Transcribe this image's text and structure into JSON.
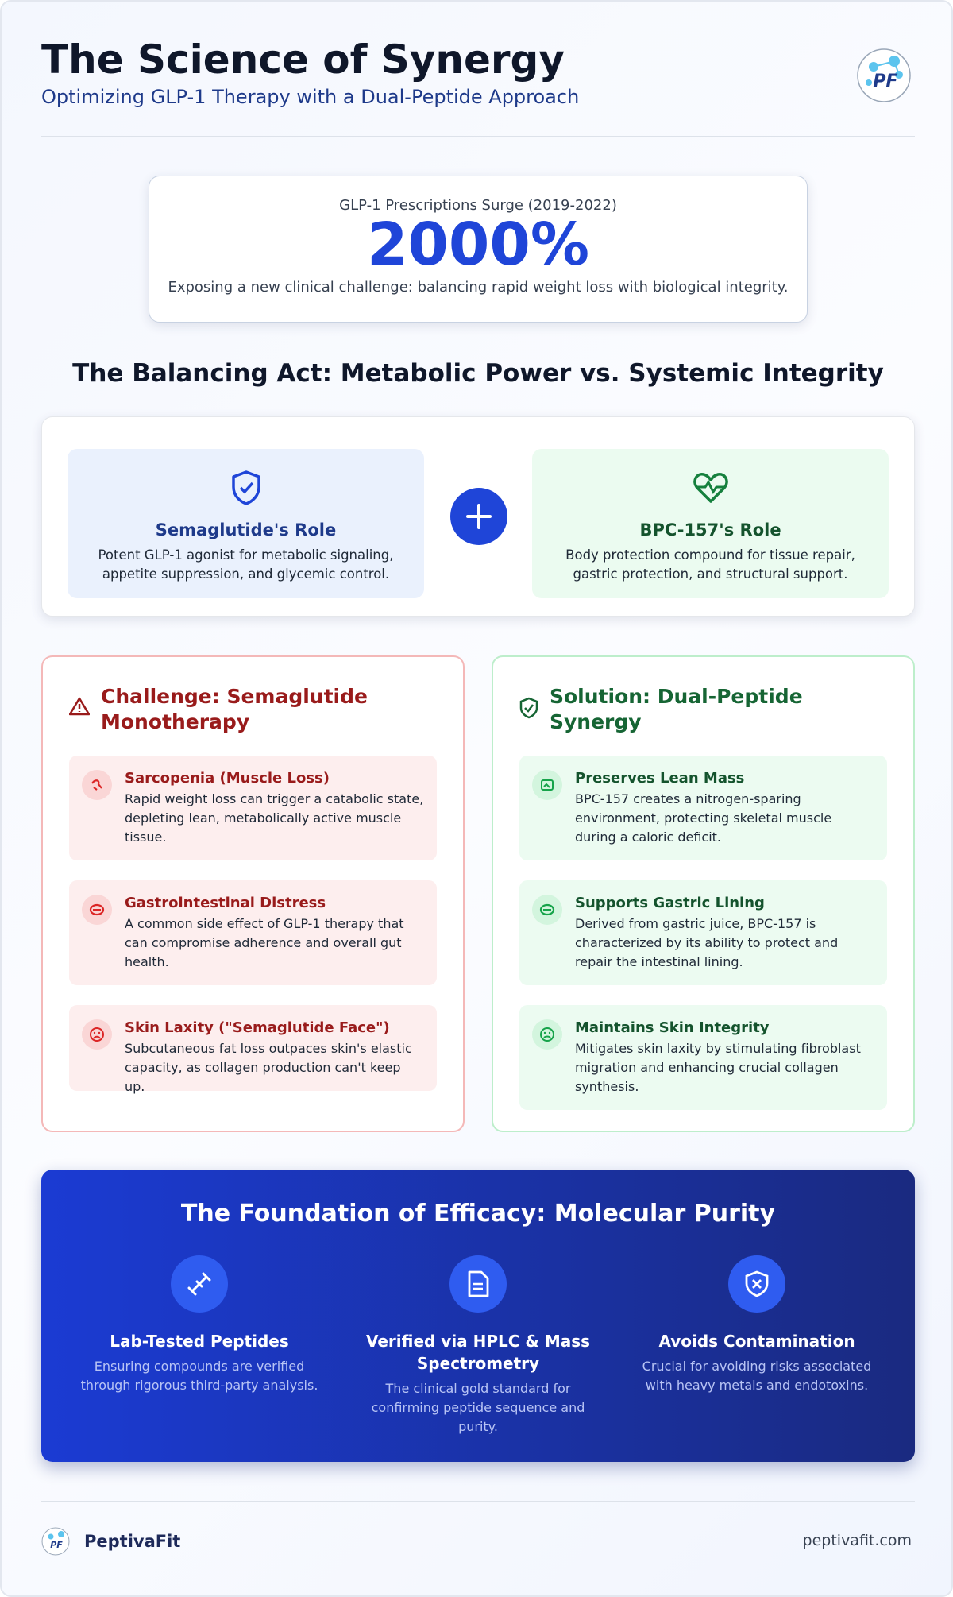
{
  "header": {
    "title": "The Science of Synergy",
    "subtitle": "Optimizing GLP-1 Therapy with a Dual-Peptide Approach",
    "logo_text": "PF"
  },
  "stat": {
    "label": "GLP-1 Prescriptions Surge (2019-2022)",
    "value": "2000%",
    "description": "Exposing a new clinical challenge: balancing rapid weight loss with biological integrity."
  },
  "balance": {
    "title": "The Balancing Act: Metabolic Power vs. Systemic Integrity",
    "roles": [
      {
        "title": "Semaglutide's Role",
        "text": "Potent GLP-1 agonist for metabolic signaling, appetite suppression, and glycemic control."
      },
      {
        "title": "BPC-157's Role",
        "text": "Body protection compound for tissue repair, gastric protection, and structural support."
      }
    ]
  },
  "challenge": {
    "title": "Challenge: Semaglutide Monotherapy",
    "items": [
      {
        "title": "Sarcopenia (Muscle Loss)",
        "text": "Rapid weight loss can trigger a catabolic state, depleting lean, metabolically active muscle tissue."
      },
      {
        "title": "Gastrointestinal Distress",
        "text": "A common side effect of GLP-1 therapy that can compromise adherence and overall gut health."
      },
      {
        "title": "Skin Laxity (\"Semaglutide Face\")",
        "text": "Subcutaneous fat loss outpaces skin's elastic capacity, as collagen production can't keep up."
      }
    ]
  },
  "solution": {
    "title": "Solution: Dual-Peptide Synergy",
    "items": [
      {
        "title": "Preserves Lean Mass",
        "text": "BPC-157 creates a nitrogen-sparing environment, protecting skeletal muscle during a caloric deficit."
      },
      {
        "title": "Supports Gastric Lining",
        "text": "Derived from gastric juice, BPC-157 is characterized by its ability to protect and repair the intestinal lining."
      },
      {
        "title": "Maintains Skin Integrity",
        "text": "Mitigates skin laxity by stimulating fibroblast migration and enhancing crucial collagen synthesis."
      }
    ]
  },
  "purity": {
    "title": "The Foundation of Efficacy: Molecular Purity",
    "items": [
      {
        "title": "Lab-Tested Peptides",
        "text": "Ensuring compounds are verified through rigorous third-party analysis."
      },
      {
        "title": "Verified via HPLC & Mass Spectrometry",
        "text": "The clinical gold standard for confirming peptide sequence and purity."
      },
      {
        "title": "Avoids Contamination",
        "text": "Crucial for avoiding risks associated with heavy metals and endotoxins."
      }
    ]
  },
  "footer": {
    "brand": "PeptivaFit",
    "url": "peptivafit.com"
  }
}
